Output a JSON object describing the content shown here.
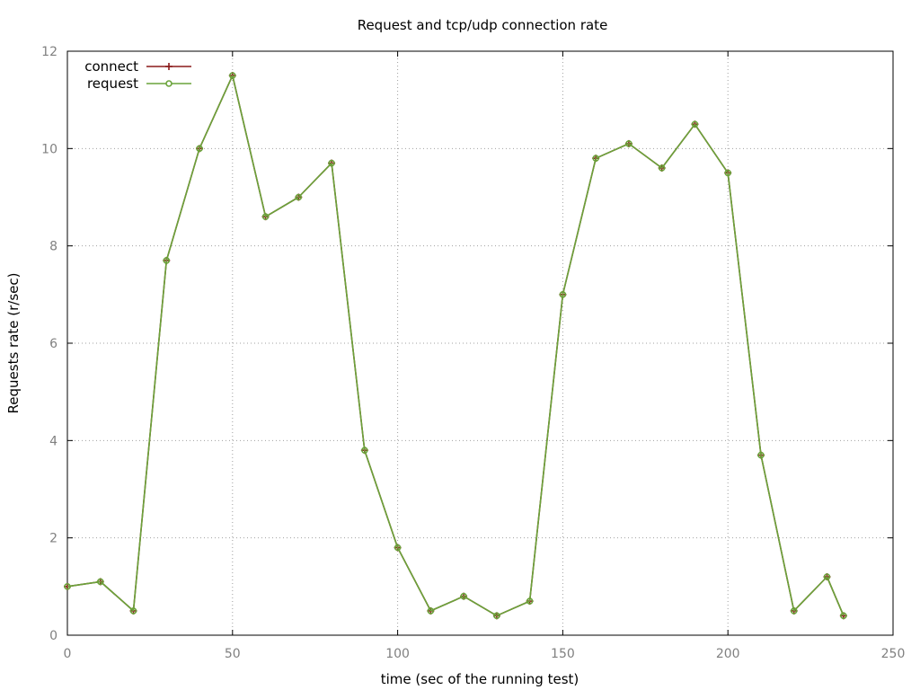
{
  "chart_data": {
    "type": "line",
    "title": "Request and tcp/udp connection rate",
    "xlabel": "time (sec of the running test)",
    "ylabel": "Requests rate (r/sec)",
    "xlim": [
      0,
      250
    ],
    "ylim": [
      0,
      12
    ],
    "xticks": [
      "0",
      "50",
      "100",
      "150",
      "200",
      "250"
    ],
    "yticks": [
      "0",
      "2",
      "4",
      "6",
      "8",
      "10",
      "12"
    ],
    "grid": true,
    "legend_position": "top-left",
    "x": [
      0,
      10,
      20,
      30,
      40,
      50,
      60,
      70,
      80,
      90,
      100,
      110,
      120,
      130,
      140,
      150,
      160,
      170,
      180,
      190,
      200,
      210,
      220,
      230,
      235
    ],
    "series": [
      {
        "name": "connect",
        "color": "#8b1a1a",
        "marker": "plus",
        "values": [
          1.0,
          1.1,
          0.5,
          7.7,
          10.0,
          11.5,
          8.6,
          9.0,
          9.7,
          3.8,
          1.8,
          0.5,
          0.8,
          0.4,
          0.7,
          7.0,
          9.8,
          10.1,
          9.6,
          10.5,
          9.5,
          3.7,
          0.5,
          1.2,
          0.4
        ]
      },
      {
        "name": "request",
        "color": "#6aa33a",
        "marker": "circle",
        "values": [
          1.0,
          1.1,
          0.5,
          7.7,
          10.0,
          11.5,
          8.6,
          9.0,
          9.7,
          3.8,
          1.8,
          0.5,
          0.8,
          0.4,
          0.7,
          7.0,
          9.8,
          10.1,
          9.6,
          10.5,
          9.5,
          3.7,
          0.5,
          1.2,
          0.4
        ]
      }
    ]
  }
}
